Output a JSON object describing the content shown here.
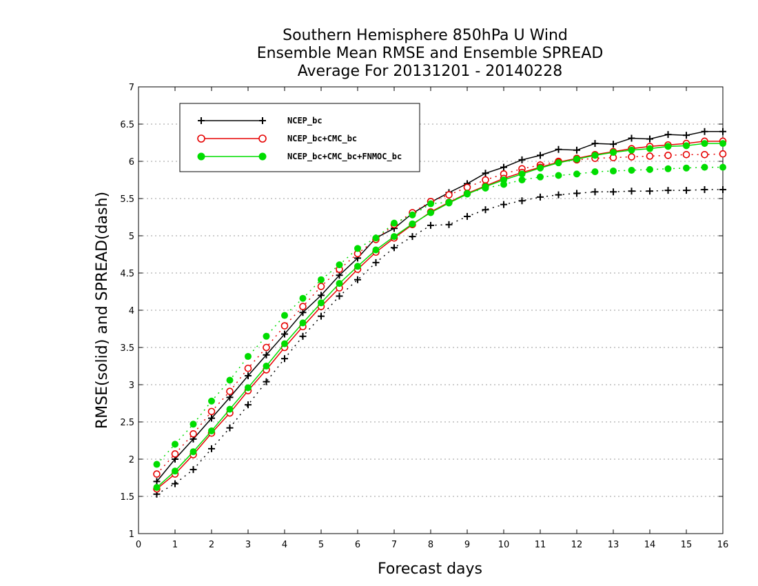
{
  "chart_data": {
    "type": "line",
    "title_lines": [
      "Southern Hemisphere 850hPa U Wind",
      "Ensemble Mean RMSE and Ensemble SPREAD",
      "Average For 20131201 - 20140228"
    ],
    "xlabel": "Forecast days",
    "ylabel": "RMSE(solid) and SPREAD(dash)",
    "xlim": [
      0,
      16
    ],
    "ylim": [
      1,
      7
    ],
    "x_ticks": [
      "0",
      "1",
      "2",
      "3",
      "4",
      "5",
      "6",
      "7",
      "8",
      "9",
      "10",
      "11",
      "12",
      "13",
      "14",
      "15",
      "16"
    ],
    "y_ticks": [
      "1",
      "1.5",
      "2",
      "2.5",
      "3",
      "3.5",
      "4",
      "4.5",
      "5",
      "5.5",
      "6",
      "6.5",
      "7"
    ],
    "grid": "horizontal dotted",
    "legend_position": "top-left",
    "x": [
      0.5,
      1,
      1.5,
      2,
      2.5,
      3,
      3.5,
      4,
      4.5,
      5,
      5.5,
      6,
      6.5,
      7,
      7.5,
      8,
      8.5,
      9,
      9.5,
      10,
      10.5,
      11,
      11.5,
      12,
      12.5,
      13,
      13.5,
      14,
      14.5,
      15,
      15.5,
      16
    ],
    "series": [
      {
        "name": "NCEP_bc",
        "color": "#000000",
        "marker": "plus",
        "rmse": [
          1.7,
          2.0,
          2.27,
          2.55,
          2.83,
          3.12,
          3.4,
          3.68,
          3.97,
          4.2,
          4.47,
          4.7,
          4.97,
          5.1,
          5.3,
          5.45,
          5.58,
          5.7,
          5.84,
          5.92,
          6.02,
          6.08,
          6.16,
          6.15,
          6.24,
          6.23,
          6.31,
          6.3,
          6.36,
          6.35,
          6.4,
          6.4
        ],
        "spread": [
          1.53,
          1.67,
          1.86,
          2.14,
          2.42,
          2.73,
          3.04,
          3.35,
          3.65,
          3.92,
          4.19,
          4.41,
          4.64,
          4.84,
          4.99,
          5.14,
          5.15,
          5.26,
          5.35,
          5.42,
          5.47,
          5.52,
          5.55,
          5.57,
          5.59,
          5.59,
          5.6,
          5.6,
          5.61,
          5.61,
          5.62,
          5.62
        ]
      },
      {
        "name": "NCEP_bc+CMC_bc",
        "color": "#e60000",
        "marker": "open-circle",
        "rmse": [
          1.6,
          1.8,
          2.06,
          2.35,
          2.62,
          2.92,
          3.2,
          3.5,
          3.78,
          4.05,
          4.3,
          4.55,
          4.78,
          4.97,
          5.15,
          5.32,
          5.45,
          5.57,
          5.67,
          5.77,
          5.85,
          5.92,
          5.99,
          6.04,
          6.09,
          6.13,
          6.17,
          6.2,
          6.22,
          6.24,
          6.27,
          6.27
        ],
        "spread": [
          1.8,
          2.07,
          2.34,
          2.64,
          2.91,
          3.22,
          3.5,
          3.79,
          4.05,
          4.32,
          4.55,
          4.76,
          4.95,
          5.15,
          5.31,
          5.46,
          5.55,
          5.65,
          5.75,
          5.83,
          5.9,
          5.95,
          6.0,
          6.02,
          6.04,
          6.05,
          6.06,
          6.07,
          6.08,
          6.09,
          6.09,
          6.1
        ]
      },
      {
        "name": "NCEP_bc+CMC_bc+FNMOC_bc",
        "color": "#00dd00",
        "marker": "filled-circle",
        "rmse": [
          1.62,
          1.84,
          2.1,
          2.38,
          2.67,
          2.96,
          3.25,
          3.55,
          3.83,
          4.1,
          4.36,
          4.59,
          4.81,
          4.99,
          5.16,
          5.31,
          5.44,
          5.56,
          5.66,
          5.75,
          5.83,
          5.91,
          5.98,
          6.03,
          6.08,
          6.12,
          6.15,
          6.17,
          6.2,
          6.21,
          6.24,
          6.24
        ],
        "spread": [
          1.93,
          2.2,
          2.47,
          2.78,
          3.06,
          3.38,
          3.65,
          3.93,
          4.16,
          4.41,
          4.61,
          4.83,
          4.97,
          5.17,
          5.28,
          5.43,
          5.45,
          5.57,
          5.64,
          5.69,
          5.75,
          5.79,
          5.81,
          5.83,
          5.86,
          5.87,
          5.88,
          5.89,
          5.9,
          5.91,
          5.92,
          5.92
        ]
      }
    ]
  }
}
